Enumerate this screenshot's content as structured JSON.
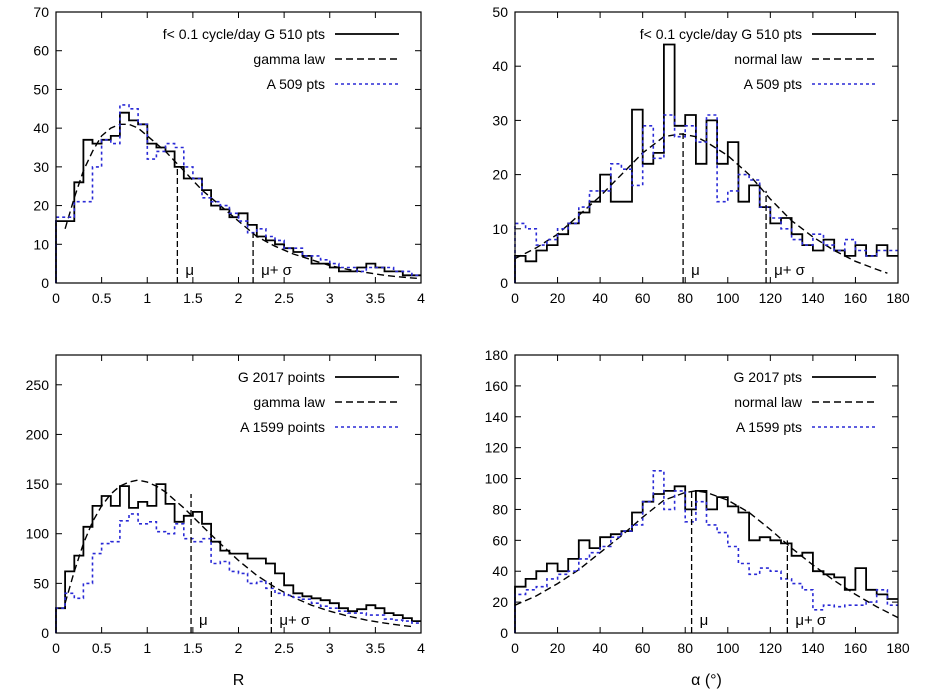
{
  "chart_data": [
    {
      "type": "step",
      "xlabel": "",
      "xlim": [
        0,
        4
      ],
      "ylim": [
        0,
        70
      ],
      "xticks": [
        0,
        0.5,
        1,
        1.5,
        2,
        2.5,
        3,
        3.5,
        4
      ],
      "yticks": [
        0,
        10,
        20,
        30,
        40,
        50,
        60,
        70
      ],
      "legend_position": "top-right",
      "series": [
        {
          "name": "f< 0.1 cycle/day G 510 pts",
          "style": "solid",
          "color": "#000000",
          "x": [
            0,
            0.1,
            0.2,
            0.3,
            0.4,
            0.5,
            0.6,
            0.7,
            0.8,
            0.9,
            1.0,
            1.1,
            1.2,
            1.3,
            1.4,
            1.5,
            1.6,
            1.7,
            1.8,
            1.9,
            2.0,
            2.1,
            2.2,
            2.3,
            2.4,
            2.5,
            2.6,
            2.7,
            2.8,
            2.9,
            3.0,
            3.1,
            3.2,
            3.3,
            3.4,
            3.5,
            3.6,
            3.7,
            3.8,
            3.9
          ],
          "values": [
            16,
            16,
            26,
            37,
            36,
            37,
            38,
            44,
            42,
            41,
            36,
            35,
            34,
            30,
            27,
            27,
            24,
            20,
            19,
            17,
            18,
            15,
            12,
            11,
            10,
            9,
            8,
            7,
            5,
            5,
            4,
            3,
            3,
            4,
            5,
            4,
            3,
            3,
            2,
            2
          ]
        },
        {
          "name": "gamma law",
          "style": "dashed",
          "color": "#000000",
          "x": [
            0.1,
            0.2,
            0.3,
            0.4,
            0.5,
            0.6,
            0.7,
            0.8,
            0.9,
            1.0,
            1.2,
            1.4,
            1.6,
            1.8,
            2.0,
            2.2,
            2.4,
            2.6,
            2.8,
            3.0,
            3.2,
            3.4,
            3.6,
            3.8,
            4.0
          ],
          "values": [
            14,
            22,
            29,
            34,
            38,
            40,
            41,
            41,
            40,
            38,
            34,
            29,
            24,
            20,
            16,
            12,
            9.5,
            7.5,
            6,
            4.5,
            3.5,
            2.7,
            2,
            1.5,
            1.1
          ]
        },
        {
          "name": "A  509 pts",
          "style": "dotted",
          "color": "#2a2ad6",
          "x": [
            0,
            0.1,
            0.2,
            0.3,
            0.4,
            0.5,
            0.6,
            0.7,
            0.8,
            0.9,
            1.0,
            1.1,
            1.2,
            1.3,
            1.4,
            1.5,
            1.6,
            1.7,
            1.8,
            1.9,
            2.0,
            2.1,
            2.2,
            2.3,
            2.4,
            2.5,
            2.6,
            2.7,
            2.8,
            2.9,
            3.0,
            3.1,
            3.2,
            3.3,
            3.4,
            3.5,
            3.6,
            3.7,
            3.8,
            3.9
          ],
          "values": [
            17,
            17,
            21,
            21,
            30,
            37,
            36,
            46,
            45,
            41,
            32,
            34,
            36,
            35,
            30,
            27,
            22,
            21,
            20,
            18,
            16,
            13,
            14,
            12,
            11,
            9,
            9,
            7,
            7,
            6,
            5,
            4,
            4,
            3,
            4,
            4,
            4,
            3,
            3,
            2
          ]
        }
      ],
      "markers": [
        {
          "x": 1.33,
          "label": "μ",
          "height": 30
        },
        {
          "x": 2.16,
          "label": "μ+ σ",
          "height": 13
        }
      ]
    },
    {
      "type": "step",
      "xlabel": "",
      "xlim": [
        0,
        180
      ],
      "ylim": [
        0,
        50
      ],
      "xticks": [
        0,
        20,
        40,
        60,
        80,
        100,
        120,
        140,
        160,
        180
      ],
      "yticks": [
        0,
        10,
        20,
        30,
        40,
        50
      ],
      "legend_position": "top-right",
      "series": [
        {
          "name": "f< 0.1 cycle/day G 510 pts",
          "style": "solid",
          "color": "#000000",
          "x": [
            0,
            5,
            10,
            15,
            20,
            25,
            30,
            35,
            40,
            45,
            50,
            55,
            60,
            65,
            70,
            75,
            80,
            85,
            90,
            95,
            100,
            105,
            110,
            115,
            120,
            125,
            130,
            135,
            140,
            145,
            150,
            155,
            160,
            165,
            170,
            175
          ],
          "values": [
            5,
            4,
            6,
            7,
            9,
            11,
            13,
            15,
            20,
            15,
            15,
            32,
            22,
            24,
            44,
            29,
            31,
            22,
            30,
            22,
            26,
            15,
            18,
            14,
            11,
            12,
            9,
            7,
            6,
            8,
            6,
            5,
            7,
            5,
            7,
            5
          ]
        },
        {
          "name": "normal law",
          "style": "dashed",
          "color": "#000000",
          "x": [
            0,
            10,
            20,
            30,
            40,
            50,
            60,
            70,
            78,
            85,
            90,
            100,
            110,
            120,
            130,
            140,
            150,
            160,
            170,
            175
          ],
          "values": [
            4.5,
            6.5,
            9,
            12.5,
            16,
            20,
            24,
            27,
            27.5,
            27,
            26,
            23.5,
            20,
            15.5,
            11.5,
            8.5,
            6,
            4,
            2.5,
            1.8
          ]
        },
        {
          "name": "A 509 pts",
          "style": "dotted",
          "color": "#2a2ad6",
          "x": [
            0,
            5,
            10,
            15,
            20,
            25,
            30,
            35,
            40,
            45,
            50,
            55,
            60,
            65,
            70,
            75,
            80,
            85,
            90,
            95,
            100,
            105,
            110,
            115,
            120,
            125,
            130,
            135,
            140,
            145,
            150,
            155,
            160,
            165,
            170,
            175
          ],
          "values": [
            11,
            10,
            7,
            8,
            10,
            11,
            14,
            17,
            17,
            22,
            21,
            18,
            29,
            23,
            31,
            27,
            29,
            26,
            31,
            15,
            17,
            20,
            19,
            14,
            12,
            10,
            8,
            7,
            9,
            7,
            6,
            8,
            6,
            5,
            6,
            6
          ]
        }
      ],
      "markers": [
        {
          "x": 79,
          "label": "μ",
          "height": 28
        },
        {
          "x": 118,
          "label": "μ+ σ",
          "height": 17
        }
      ]
    },
    {
      "type": "step",
      "xlabel": "R",
      "xlim": [
        0,
        4
      ],
      "ylim": [
        0,
        280
      ],
      "xticks": [
        0,
        0.5,
        1,
        1.5,
        2,
        2.5,
        3,
        3.5,
        4
      ],
      "yticks": [
        0,
        50,
        100,
        150,
        200,
        250
      ],
      "legend_position": "top-right",
      "series": [
        {
          "name": "G 2017 points",
          "style": "solid",
          "color": "#000000",
          "x": [
            0,
            0.1,
            0.2,
            0.3,
            0.4,
            0.5,
            0.6,
            0.7,
            0.8,
            0.9,
            1.0,
            1.1,
            1.2,
            1.3,
            1.4,
            1.5,
            1.6,
            1.7,
            1.8,
            1.9,
            2.0,
            2.1,
            2.2,
            2.3,
            2.4,
            2.5,
            2.6,
            2.7,
            2.8,
            2.9,
            3.0,
            3.1,
            3.2,
            3.3,
            3.4,
            3.5,
            3.6,
            3.7,
            3.8,
            3.9
          ],
          "values": [
            25,
            62,
            78,
            107,
            128,
            138,
            128,
            148,
            126,
            132,
            128,
            150,
            130,
            112,
            118,
            122,
            110,
            92,
            83,
            80,
            80,
            75,
            75,
            70,
            60,
            48,
            40,
            37,
            35,
            33,
            30,
            25,
            22,
            24,
            28,
            25,
            20,
            18,
            15,
            12
          ]
        },
        {
          "name": "gamma law",
          "style": "dashed",
          "color": "#000000",
          "x": [
            0.1,
            0.2,
            0.3,
            0.4,
            0.5,
            0.6,
            0.7,
            0.8,
            0.9,
            1.0,
            1.1,
            1.2,
            1.3,
            1.4,
            1.5,
            1.6,
            1.8,
            2.0,
            2.2,
            2.4,
            2.6,
            2.8,
            3.0,
            3.2,
            3.4,
            3.6,
            3.8,
            3.9
          ],
          "values": [
            30,
            62,
            90,
            112,
            128,
            140,
            148,
            152,
            154,
            152,
            148,
            142,
            134,
            126,
            117,
            108,
            90,
            73,
            58,
            46,
            36,
            28,
            22,
            17,
            13,
            10,
            7.5,
            6.5
          ]
        },
        {
          "name": "A 1599 points",
          "style": "dotted",
          "color": "#2a2ad6",
          "x": [
            0,
            0.1,
            0.2,
            0.3,
            0.4,
            0.5,
            0.6,
            0.7,
            0.8,
            0.9,
            1.0,
            1.1,
            1.2,
            1.3,
            1.4,
            1.5,
            1.6,
            1.7,
            1.8,
            1.9,
            2.0,
            2.1,
            2.2,
            2.3,
            2.4,
            2.5,
            2.6,
            2.7,
            2.8,
            2.9,
            3.0,
            3.1,
            3.2,
            3.3,
            3.4,
            3.5,
            3.6,
            3.7,
            3.8,
            3.9
          ],
          "values": [
            25,
            40,
            35,
            50,
            80,
            90,
            92,
            113,
            120,
            110,
            112,
            102,
            100,
            110,
            95,
            92,
            95,
            70,
            72,
            62,
            60,
            50,
            52,
            45,
            40,
            38,
            36,
            34,
            30,
            27,
            25,
            22,
            20,
            20,
            18,
            18,
            14,
            13,
            12,
            10
          ]
        }
      ],
      "markers": [
        {
          "x": 1.48,
          "label": "μ",
          "height": 140
        },
        {
          "x": 2.36,
          "label": "μ+ σ",
          "height": 52
        }
      ]
    },
    {
      "type": "step",
      "xlabel": "α (°)",
      "xlim": [
        0,
        180
      ],
      "ylim": [
        0,
        180
      ],
      "xticks": [
        0,
        20,
        40,
        60,
        80,
        100,
        120,
        140,
        160,
        180
      ],
      "yticks": [
        0,
        20,
        40,
        60,
        80,
        100,
        120,
        140,
        160,
        180
      ],
      "legend_position": "top-right",
      "series": [
        {
          "name": "G 2017 pts",
          "style": "solid",
          "color": "#000000",
          "x": [
            0,
            5,
            10,
            15,
            20,
            25,
            30,
            35,
            40,
            45,
            50,
            55,
            60,
            65,
            70,
            75,
            80,
            85,
            90,
            95,
            100,
            105,
            110,
            115,
            120,
            125,
            130,
            135,
            140,
            145,
            150,
            155,
            160,
            165,
            170,
            175
          ],
          "values": [
            30,
            35,
            40,
            45,
            40,
            48,
            60,
            55,
            62,
            64,
            66,
            78,
            85,
            90,
            92,
            95,
            80,
            92,
            80,
            88,
            82,
            78,
            60,
            62,
            60,
            58,
            50,
            52,
            40,
            38,
            36,
            28,
            42,
            28,
            25,
            22
          ]
        },
        {
          "name": "normal law",
          "style": "dashed",
          "color": "#000000",
          "x": [
            0,
            10,
            20,
            30,
            40,
            50,
            60,
            70,
            80,
            85,
            90,
            100,
            110,
            120,
            130,
            140,
            150,
            160,
            170,
            180
          ],
          "values": [
            18,
            24,
            32,
            41,
            52,
            63,
            75,
            86,
            91,
            92,
            91,
            86,
            78,
            67,
            55,
            44,
            34,
            25,
            17,
            10
          ]
        },
        {
          "name": "A  1599 pts",
          "style": "dotted",
          "color": "#2a2ad6",
          "x": [
            0,
            5,
            10,
            15,
            20,
            25,
            30,
            35,
            40,
            45,
            50,
            55,
            60,
            65,
            70,
            75,
            80,
            85,
            90,
            95,
            100,
            105,
            110,
            115,
            120,
            125,
            130,
            135,
            140,
            145,
            150,
            155,
            160,
            165,
            170,
            175
          ],
          "values": [
            25,
            28,
            30,
            35,
            38,
            40,
            48,
            52,
            56,
            62,
            66,
            70,
            85,
            105,
            80,
            92,
            72,
            85,
            70,
            65,
            56,
            45,
            38,
            42,
            40,
            35,
            32,
            28,
            15,
            18,
            17,
            18,
            18,
            20,
            28,
            18
          ]
        }
      ],
      "markers": [
        {
          "x": 83,
          "label": "μ",
          "height": 92
        },
        {
          "x": 128,
          "label": "μ+ σ",
          "height": 60
        }
      ]
    }
  ]
}
